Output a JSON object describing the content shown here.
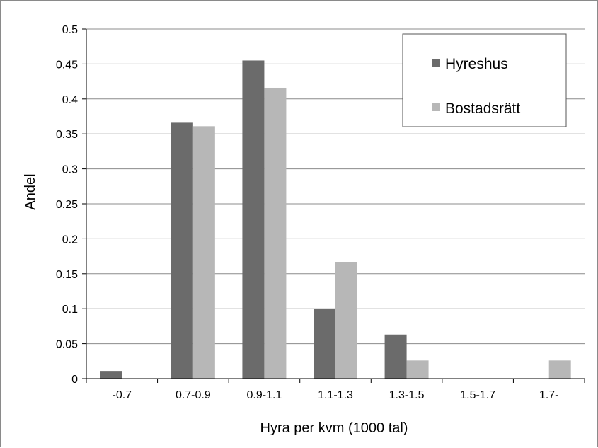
{
  "chart_data": {
    "type": "bar",
    "title": "",
    "xlabel": "Hyra per kvm (1000 tal)",
    "ylabel": "Andel",
    "categories": [
      "-0.7",
      "0.7-0.9",
      "0.9-1.1",
      "1.1-1.3",
      "1.3-1.5",
      "1.5-1.7",
      "1.7-"
    ],
    "series": [
      {
        "name": "Hyreshus",
        "color": "#6b6b6b",
        "values": [
          0.011,
          0.366,
          0.455,
          0.1,
          0.063,
          0,
          0
        ]
      },
      {
        "name": "Bostadsrätt",
        "color": "#b7b7b7",
        "values": [
          0,
          0.361,
          0.416,
          0.167,
          0.026,
          0,
          0.026
        ]
      }
    ],
    "ylim": [
      0,
      0.5
    ],
    "yticks": [
      "0",
      "0.05",
      "0.1",
      "0.15",
      "0.2",
      "0.25",
      "0.3",
      "0.35",
      "0.4",
      "0.45",
      "0.5"
    ],
    "grid": true,
    "legend_position": "top-right"
  }
}
